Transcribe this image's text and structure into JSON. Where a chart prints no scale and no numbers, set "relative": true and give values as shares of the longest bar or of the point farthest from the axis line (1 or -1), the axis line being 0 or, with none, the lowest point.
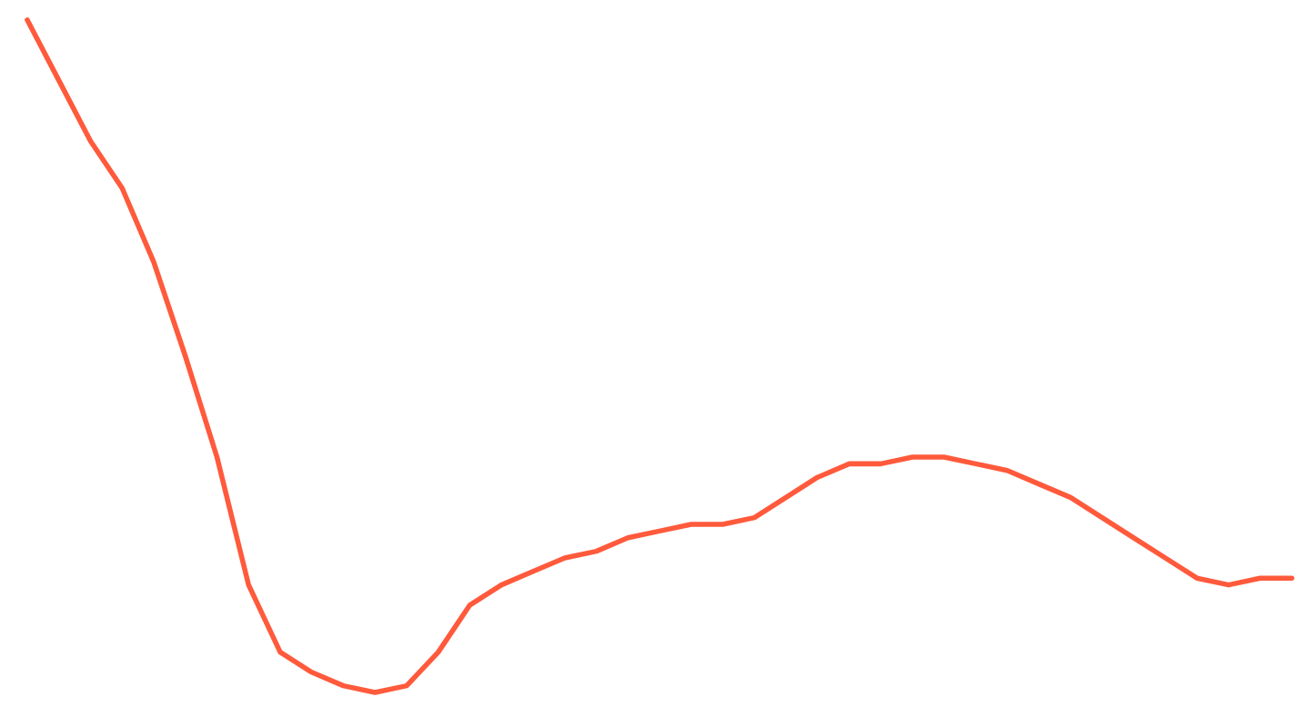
{
  "chart_data": {
    "type": "line",
    "relative": true,
    "categories": [
      null,
      null,
      null,
      null,
      null,
      null,
      null,
      null,
      null,
      null,
      null,
      null,
      null,
      null,
      null,
      null,
      null,
      null,
      null,
      null,
      null,
      null,
      null,
      null,
      null,
      null,
      null,
      null,
      null,
      null,
      null,
      null,
      null,
      null,
      null,
      null,
      null,
      null,
      null,
      null,
      null
    ],
    "series": [
      {
        "color": "#ff5a3c",
        "values": [
          1.0,
          0.91,
          0.82,
          0.75,
          0.64,
          0.5,
          0.35,
          0.16,
          0.06,
          0.03,
          0.01,
          0,
          0.01,
          0.06,
          0.13,
          0.16,
          0.18,
          0.2,
          0.21,
          0.23,
          0.24,
          0.25,
          0.25,
          0.26,
          0.29,
          0.32,
          0.34,
          0.34,
          0.35,
          0.35,
          0.34,
          0.33,
          0.31,
          0.29,
          0.26,
          0.23,
          0.2,
          0.17,
          0.16,
          0.17,
          0.17
        ]
      }
    ],
    "legend": false
  }
}
